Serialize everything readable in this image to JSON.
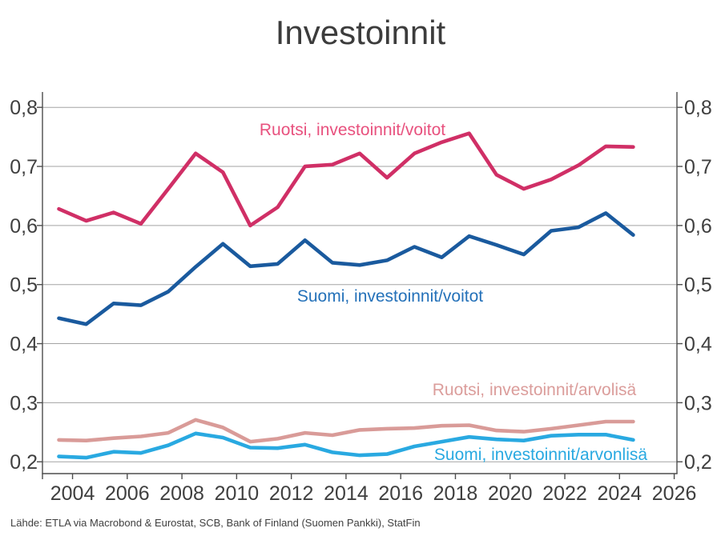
{
  "title": "Investoinnit",
  "source_note": "Lähde: ETLA via Macrobond & Eurostat, SCB, Bank of Finland (Suomen Pankki), StatFin",
  "colors": {
    "background": "#FFFFFF",
    "grid": "#A3A3A3",
    "axis": "#4D4D4D",
    "text": "#3F3F3F",
    "title": "#3C3C3C"
  },
  "chart_data": {
    "type": "line",
    "title": "Investoinnit",
    "xlabel": "",
    "ylabel": "",
    "grid": "horizontal",
    "legend_position": "inline-labels",
    "y_axis_sides": [
      "left",
      "right"
    ],
    "x": [
      2003,
      2004,
      2005,
      2006,
      2007,
      2008,
      2009,
      2010,
      2011,
      2012,
      2013,
      2014,
      2015,
      2016,
      2017,
      2018,
      2019,
      2020,
      2021,
      2022,
      2023,
      2024
    ],
    "x_plot_offset": 0.5,
    "xlim": [
      2002.9,
      2026.1
    ],
    "ylim": [
      0.18,
      0.826
    ],
    "x_ticks": [
      2004,
      2006,
      2008,
      2010,
      2012,
      2014,
      2016,
      2018,
      2020,
      2022,
      2024,
      2026
    ],
    "y_ticks": [
      0.2,
      0.3,
      0.4,
      0.5,
      0.6,
      0.7,
      0.8
    ],
    "y_tick_labels": [
      "0,2",
      "0,3",
      "0,4",
      "0,5",
      "0,6",
      "0,7",
      "0,8"
    ],
    "series": [
      {
        "name": "Ruotsi, investoinnit/voitot",
        "color": "#D02F66",
        "label_color": "#E8517E",
        "values": [
          0.628,
          0.608,
          0.622,
          0.603,
          0.662,
          0.722,
          0.69,
          0.6,
          0.631,
          0.7,
          0.703,
          0.722,
          0.681,
          0.722,
          0.741,
          0.756,
          0.686,
          0.662,
          0.678,
          0.702,
          0.734,
          0.733
        ]
      },
      {
        "name": "Suomi, investoinnit/voitot",
        "color": "#1A5A9E",
        "label_color": "#2471B9",
        "values": [
          0.443,
          0.433,
          0.468,
          0.465,
          0.488,
          0.53,
          0.569,
          0.531,
          0.535,
          0.575,
          0.537,
          0.533,
          0.541,
          0.564,
          0.546,
          0.582,
          0.567,
          0.551,
          0.591,
          0.597,
          0.621,
          0.584
        ]
      },
      {
        "name": "Ruotsi, investoinnit/arvolisä",
        "color": "#D99B98",
        "label_color": "#DB9D9B",
        "values": [
          0.237,
          0.236,
          0.24,
          0.243,
          0.249,
          0.271,
          0.258,
          0.234,
          0.239,
          0.249,
          0.245,
          0.254,
          0.256,
          0.257,
          0.261,
          0.262,
          0.253,
          0.251,
          0.256,
          0.262,
          0.268,
          0.268
        ]
      },
      {
        "name": "Suomi, investoinnit/arvonlisä",
        "color": "#29A9E1",
        "label_color": "#29A9E1",
        "values": [
          0.209,
          0.207,
          0.217,
          0.215,
          0.228,
          0.248,
          0.241,
          0.224,
          0.223,
          0.229,
          0.216,
          0.211,
          0.213,
          0.226,
          0.234,
          0.242,
          0.238,
          0.236,
          0.244,
          0.246,
          0.246,
          0.237
        ]
      }
    ]
  }
}
